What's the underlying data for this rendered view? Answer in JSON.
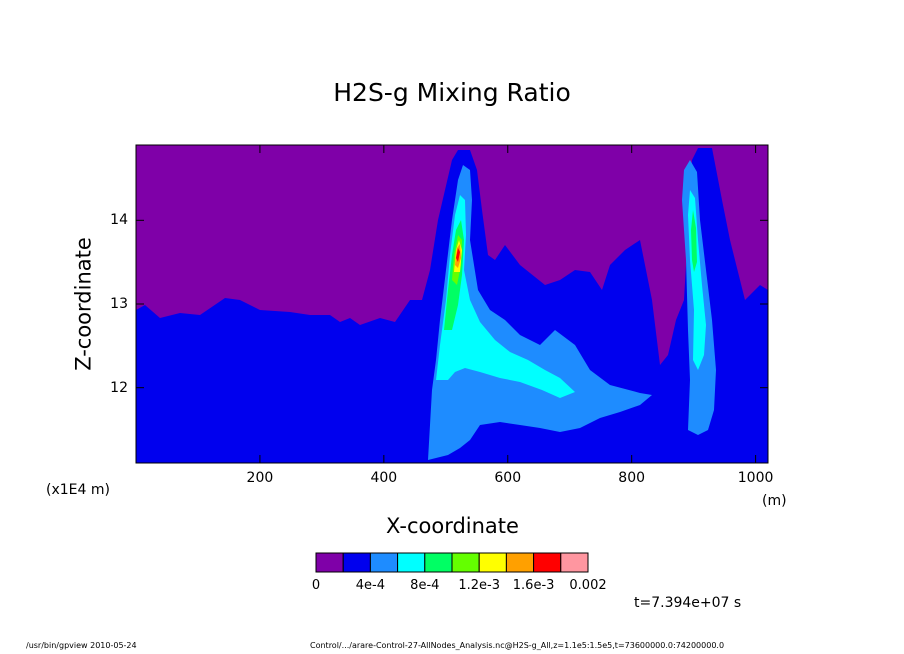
{
  "chart_data": {
    "type": "heatmap",
    "title": "H2S-g Mixing Ratio",
    "xlabel": "X-coordinate",
    "ylabel": "Z-coordinate",
    "x_unit": "(m)",
    "y_unit": "(x1E4 m)",
    "xlim": [
      0,
      1020
    ],
    "ylim": [
      11.1,
      14.9
    ],
    "x_ticks": [
      "200",
      "400",
      "600",
      "800",
      "1000"
    ],
    "x_tick_values": [
      200,
      400,
      600,
      800,
      1000
    ],
    "y_ticks": [
      "12",
      "13",
      "14"
    ],
    "y_tick_values": [
      12,
      13,
      14
    ],
    "colorbar": {
      "labels": [
        "0",
        "4e-4",
        "8e-4",
        "1.2e-3",
        "1.6e-3",
        "0.002"
      ],
      "label_values": [
        0,
        0.0004,
        0.0008,
        0.0012,
        0.0016,
        0.002
      ],
      "colors": [
        "#7f00a8",
        "#0000ee",
        "#1e8cff",
        "#00ffff",
        "#00ff64",
        "#64ff00",
        "#ffff00",
        "#ffa000",
        "#ff0000",
        "#ff96a0"
      ]
    },
    "annotation": "t=7.394e+07 s"
  },
  "footer": {
    "left": "/usr/bin/gpview  2010-05-24",
    "right": "Control/.../arare-Control-27-AllNodes_Analysis.nc@H2S-g_All,z=1.1e5:1.5e5,t=73600000.0:74200000.0"
  }
}
